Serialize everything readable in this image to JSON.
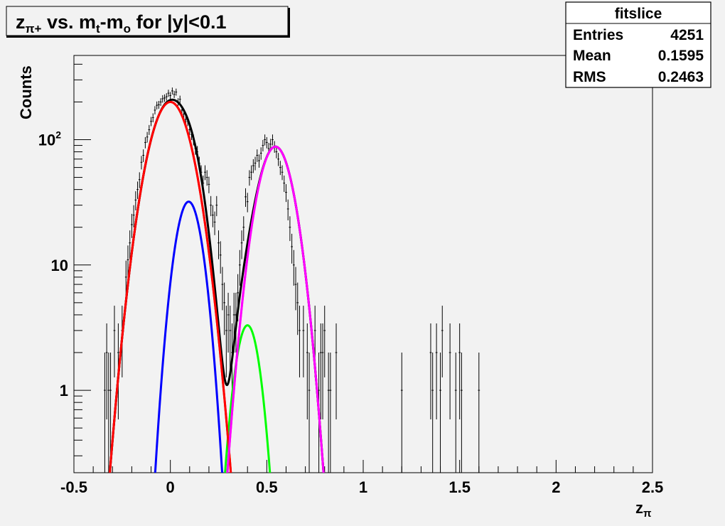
{
  "title": {
    "z": "z",
    "z_sub": "π+",
    "vs": " vs. m",
    "m_sub1": "t",
    "dash": "-m",
    "m_sub2": "o",
    "rest": " for |y|<0.1"
  },
  "stats_box": {
    "name": "fitslice",
    "rows": [
      {
        "label": "Entries",
        "value": "4251"
      },
      {
        "label": "Mean",
        "value": "0.1595"
      },
      {
        "label": "RMS",
        "value": "0.2463"
      }
    ]
  },
  "colors": {
    "background": "#f2f2f2",
    "data": "#000000",
    "total_fit": "#000000",
    "red_component": "#ff0000",
    "blue_component": "#0000ff",
    "green_component": "#00ff00",
    "magenta_component": "#ff00ff"
  },
  "chart_data": {
    "type": "scatter",
    "xlabel": "z",
    "xlabel_sub": "π",
    "ylabel": "Counts",
    "xlim": [
      -0.5,
      2.5
    ],
    "ylim": [
      0.22,
      470
    ],
    "yscale": "log",
    "grid": false,
    "x_ticks": [
      {
        "value": -0.5,
        "label": "-0.5"
      },
      {
        "value": 0,
        "label": "0"
      },
      {
        "value": 0.5,
        "label": "0.5"
      },
      {
        "value": 1,
        "label": "1"
      },
      {
        "value": 1.5,
        "label": "1.5"
      },
      {
        "value": 2,
        "label": "2"
      },
      {
        "value": 2.5,
        "label": "2.5"
      }
    ],
    "y_ticks": [
      {
        "value": 1,
        "label": "1"
      },
      {
        "value": 10,
        "label": "10"
      },
      {
        "value": 100,
        "label": "10",
        "sup": "2"
      }
    ],
    "bin_width": 0.01,
    "data_points": [
      [
        -0.34,
        1
      ],
      [
        -0.33,
        2
      ],
      [
        -0.32,
        1
      ],
      [
        -0.31,
        1
      ],
      [
        -0.29,
        3
      ],
      [
        -0.27,
        2
      ],
      [
        -0.25,
        3
      ],
      [
        -0.23,
        8
      ],
      [
        -0.22,
        11
      ],
      [
        -0.21,
        15
      ],
      [
        -0.2,
        21
      ],
      [
        -0.19,
        25
      ],
      [
        -0.18,
        33
      ],
      [
        -0.17,
        40
      ],
      [
        -0.16,
        48
      ],
      [
        -0.15,
        66
      ],
      [
        -0.14,
        75
      ],
      [
        -0.13,
        95
      ],
      [
        -0.12,
        105
      ],
      [
        -0.11,
        120
      ],
      [
        -0.1,
        140
      ],
      [
        -0.09,
        150
      ],
      [
        -0.08,
        172
      ],
      [
        -0.07,
        188
      ],
      [
        -0.06,
        190
      ],
      [
        -0.05,
        200
      ],
      [
        -0.04,
        212
      ],
      [
        -0.03,
        215
      ],
      [
        -0.02,
        220
      ],
      [
        -0.01,
        235
      ],
      [
        0.0,
        225
      ],
      [
        0.01,
        245
      ],
      [
        0.02,
        230
      ],
      [
        0.03,
        240
      ],
      [
        0.04,
        200
      ],
      [
        0.05,
        210
      ],
      [
        0.06,
        172
      ],
      [
        0.07,
        160
      ],
      [
        0.08,
        145
      ],
      [
        0.09,
        140
      ],
      [
        0.1,
        120
      ],
      [
        0.11,
        110
      ],
      [
        0.12,
        100
      ],
      [
        0.13,
        85
      ],
      [
        0.14,
        80
      ],
      [
        0.15,
        65
      ],
      [
        0.16,
        55
      ],
      [
        0.17,
        45
      ],
      [
        0.18,
        55
      ],
      [
        0.19,
        50
      ],
      [
        0.2,
        44
      ],
      [
        0.21,
        30
      ],
      [
        0.22,
        25
      ],
      [
        0.23,
        22
      ],
      [
        0.24,
        30
      ],
      [
        0.25,
        15
      ],
      [
        0.26,
        12
      ],
      [
        0.27,
        7
      ],
      [
        0.28,
        5
      ],
      [
        0.29,
        3
      ],
      [
        0.3,
        4
      ],
      [
        0.31,
        3
      ],
      [
        0.32,
        2
      ],
      [
        0.33,
        4
      ],
      [
        0.34,
        4
      ],
      [
        0.35,
        6
      ],
      [
        0.36,
        10
      ],
      [
        0.37,
        15
      ],
      [
        0.38,
        20
      ],
      [
        0.39,
        35
      ],
      [
        0.4,
        32
      ],
      [
        0.41,
        50
      ],
      [
        0.42,
        55
      ],
      [
        0.43,
        62
      ],
      [
        0.44,
        65
      ],
      [
        0.45,
        75
      ],
      [
        0.46,
        68
      ],
      [
        0.47,
        78
      ],
      [
        0.48,
        90
      ],
      [
        0.49,
        100
      ],
      [
        0.5,
        95
      ],
      [
        0.51,
        85
      ],
      [
        0.52,
        92
      ],
      [
        0.53,
        100
      ],
      [
        0.54,
        88
      ],
      [
        0.55,
        80
      ],
      [
        0.56,
        70
      ],
      [
        0.57,
        60
      ],
      [
        0.58,
        55
      ],
      [
        0.59,
        45
      ],
      [
        0.6,
        38
      ],
      [
        0.61,
        28
      ],
      [
        0.62,
        20
      ],
      [
        0.63,
        14
      ],
      [
        0.64,
        10
      ],
      [
        0.65,
        7
      ],
      [
        0.66,
        5
      ],
      [
        0.67,
        3
      ],
      [
        0.69,
        3
      ],
      [
        0.71,
        2
      ],
      [
        0.72,
        1
      ],
      [
        0.75,
        3
      ],
      [
        0.77,
        1
      ],
      [
        0.78,
        2
      ],
      [
        0.79,
        2
      ],
      [
        0.8,
        3
      ],
      [
        0.82,
        1
      ],
      [
        0.83,
        1
      ],
      [
        0.86,
        2
      ],
      [
        1.2,
        1
      ],
      [
        1.35,
        2
      ],
      [
        1.36,
        1
      ],
      [
        1.38,
        2
      ],
      [
        1.4,
        1
      ],
      [
        1.41,
        3
      ],
      [
        1.45,
        2
      ],
      [
        1.48,
        1
      ],
      [
        1.5,
        2
      ],
      [
        1.51,
        1
      ],
      [
        1.6,
        1
      ]
    ],
    "series": [
      {
        "color_key": "red_component",
        "amplitude": 200,
        "mean": 0.0,
        "sigma": 0.085
      },
      {
        "color_key": "blue_component",
        "amplitude": 32,
        "mean": 0.095,
        "sigma": 0.055
      },
      {
        "color_key": "green_component",
        "amplitude": 3.3,
        "mean": 0.4,
        "sigma": 0.05
      },
      {
        "color_key": "magenta_component",
        "amplitude": 88,
        "mean": 0.545,
        "sigma": 0.072
      }
    ],
    "total_fit": {
      "color_key": "total_fit",
      "sum_of_series": true
    }
  }
}
